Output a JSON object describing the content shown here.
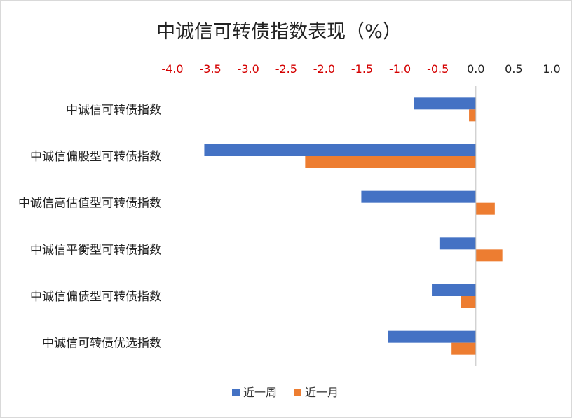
{
  "chart_data": {
    "type": "bar",
    "orientation": "horizontal",
    "title": "中诚信可转债指数表现（%）",
    "xlabel": "",
    "ylabel": "",
    "xlim": [
      -4.0,
      1.0
    ],
    "xticks": [
      "-4.0",
      "-3.5",
      "-3.0",
      "-2.5",
      "-2.0",
      "-1.5",
      "-1.0",
      "-0.5",
      "0.0",
      "0.5",
      "1.0"
    ],
    "negative_tick_color": "#d40000",
    "grid": false,
    "axis_position": "top",
    "legend_position": "bottom",
    "categories": [
      "中诚信可转债指数",
      "中诚信偏股型可转债指数",
      "中诚信高估值型可转债指数",
      "中诚信平衡型可转债指数",
      "中诚信偏债型可转债指数",
      "中诚信可转债优选指数"
    ],
    "series": [
      {
        "name": "近一周",
        "color": "#4472c4",
        "values": [
          -0.82,
          -3.58,
          -1.51,
          -0.48,
          -0.58,
          -1.16
        ]
      },
      {
        "name": "近一月",
        "color": "#ed7d31",
        "values": [
          -0.09,
          -2.25,
          0.25,
          0.35,
          -0.2,
          -0.32
        ]
      }
    ]
  }
}
